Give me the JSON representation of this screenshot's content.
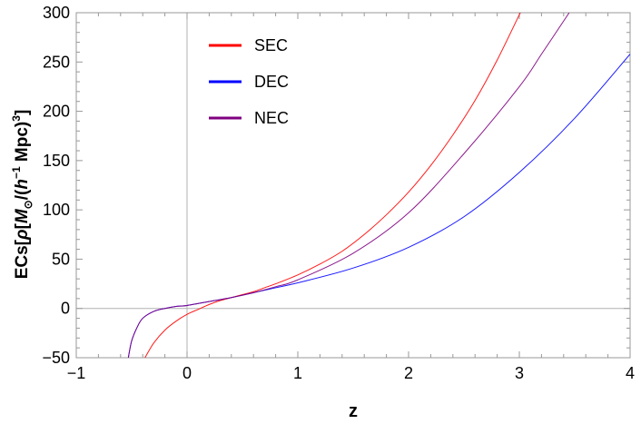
{
  "chart_data": {
    "type": "line",
    "title": "",
    "xlabel": "z",
    "ylabel": {
      "prefix": "ECs[",
      "rho": "ρ",
      "bracket_open": "[",
      "mass": "M",
      "sun_subscript": "⊙",
      "slash_paren": "/(",
      "h": "h",
      "h_exponent": "−1",
      "mpc": " Mpc)",
      "cube": "3",
      "close": "]"
    },
    "xlim": [
      -1,
      4
    ],
    "ylim": [
      -50,
      300
    ],
    "x_ticks": [
      -1,
      0,
      1,
      2,
      3,
      4
    ],
    "y_ticks": [
      -50,
      0,
      50,
      100,
      150,
      200,
      250,
      300
    ],
    "tick_labels_x": [
      "−1",
      "0",
      "1",
      "2",
      "3",
      "4"
    ],
    "tick_labels_y": [
      "−50",
      "0",
      "50",
      "100",
      "150",
      "200",
      "250",
      "300"
    ],
    "grid": false,
    "legend_position": "top-left",
    "series": [
      {
        "name": "SEC",
        "color": "#ff0000",
        "x": [
          -0.38,
          -0.3,
          -0.2,
          -0.1,
          0,
          0.1,
          0.2,
          0.3,
          0.4,
          0.5,
          0.6,
          0.7,
          0.8,
          1,
          1.2,
          1.4,
          1.6,
          1.8,
          2,
          2.2,
          2.4,
          2.6,
          2.8,
          3,
          3.02
        ],
        "values": [
          -50,
          -35,
          -22,
          -13,
          -6,
          -1,
          4,
          8,
          11,
          14,
          17,
          21,
          25,
          34,
          45,
          58,
          75,
          95,
          118,
          145,
          176,
          211,
          252,
          298,
          302
        ]
      },
      {
        "name": "DEC",
        "color": "#0000ff",
        "x": [
          -0.53,
          -0.5,
          -0.45,
          -0.4,
          -0.3,
          -0.2,
          -0.1,
          0,
          0.2,
          0.4,
          0.6,
          0.8,
          1,
          1.5,
          2,
          2.5,
          3,
          3.5,
          4
        ],
        "values": [
          -50,
          -33,
          -19,
          -10,
          -3,
          0,
          2,
          3,
          7,
          11,
          16,
          21,
          26,
          41,
          62,
          93,
          138,
          193,
          258
        ]
      },
      {
        "name": "NEC",
        "color": "#800080",
        "x": [
          -0.53,
          -0.5,
          -0.45,
          -0.4,
          -0.3,
          -0.2,
          -0.1,
          0,
          0.2,
          0.4,
          0.6,
          0.8,
          1,
          1.5,
          2,
          2.5,
          3,
          3.2,
          3.45
        ],
        "values": [
          -50,
          -33,
          -19,
          -10,
          -3,
          0,
          2,
          3,
          7,
          11,
          16,
          22,
          29,
          56,
          97,
          157,
          225,
          258,
          300
        ]
      }
    ]
  }
}
